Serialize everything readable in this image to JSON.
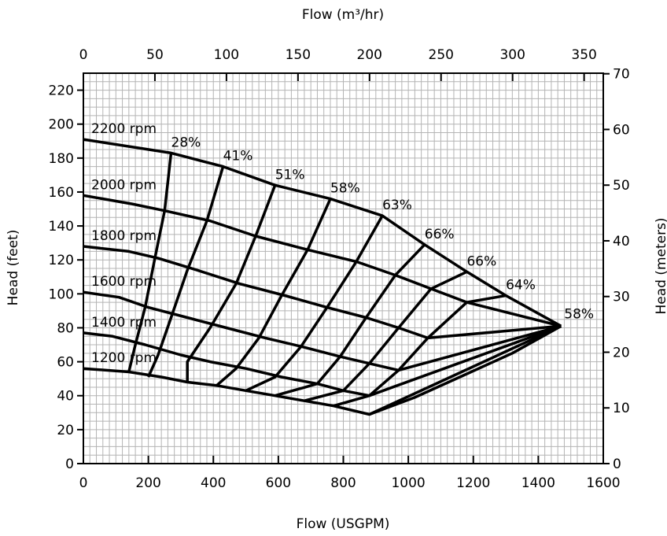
{
  "chart_data": {
    "type": "line",
    "title": "",
    "xlabel": "Flow (USGPM)",
    "x2label": "Flow (m³/hr)",
    "ylabel": "Head (feet)",
    "y2label": "Head (meters)",
    "xlim": [
      0,
      1600
    ],
    "ylim": [
      0,
      230
    ],
    "x2lim": [
      0,
      363.4
    ],
    "y2lim": [
      0,
      70.1
    ],
    "xticks": [
      0,
      200,
      400,
      600,
      800,
      1000,
      1200,
      1400,
      1600
    ],
    "yticks": [
      0,
      20,
      40,
      60,
      80,
      100,
      120,
      140,
      160,
      180,
      200,
      220
    ],
    "x2ticks": [
      0,
      50,
      100,
      150,
      200,
      250,
      300,
      350
    ],
    "y2ticks": [
      0,
      10,
      20,
      30,
      40,
      50,
      60,
      70
    ],
    "grid": true,
    "series": [
      {
        "name": "2200 rpm",
        "x": [
          0,
          270,
          310,
          430,
          590,
          760,
          920,
          1050,
          1180,
          1300,
          1470
        ],
        "y": [
          191,
          183,
          181,
          175,
          164,
          156,
          146,
          129,
          113,
          99,
          81
        ]
      },
      {
        "name": "2000 rpm",
        "x": [
          0,
          150,
          250,
          390,
          530,
          690,
          840,
          960,
          1070,
          1180,
          1470
        ],
        "y": [
          158,
          153,
          149,
          143,
          134,
          126,
          119,
          111,
          103,
          95,
          81
        ]
      },
      {
        "name": "1800 rpm",
        "x": [
          0,
          140,
          230,
          350,
          480,
          620,
          750,
          870,
          970,
          1060,
          1470
        ],
        "y": [
          128,
          125,
          121,
          114,
          106,
          99,
          92,
          86,
          80,
          74,
          81
        ]
      },
      {
        "name": "1600 rpm",
        "x": [
          0,
          110,
          200,
          320,
          440,
          560,
          670,
          790,
          880,
          970,
          1470
        ],
        "y": [
          101,
          98,
          92,
          86,
          80,
          74,
          69,
          63,
          59,
          55,
          81
        ]
      },
      {
        "name": "1400 rpm",
        "x": [
          0,
          90,
          190,
          300,
          390,
          500,
          610,
          720,
          800,
          880,
          1470
        ],
        "y": [
          77,
          75,
          70,
          64,
          60,
          56,
          51,
          47,
          43,
          40,
          81
        ]
      },
      {
        "name": "1200 rpm",
        "x": [
          0,
          140,
          240,
          320,
          410,
          500,
          590,
          680,
          770,
          880,
          1470
        ],
        "y": [
          56,
          54,
          51,
          48,
          46,
          43,
          40,
          37,
          34,
          29,
          81
        ]
      }
    ],
    "efficiency_lines": [
      {
        "label": "28%",
        "x": [
          270,
          250,
          220,
          190,
          160,
          140
        ],
        "y": [
          183,
          149,
          121,
          92,
          70,
          54
        ]
      },
      {
        "label": "41%",
        "x": [
          430,
          380,
          320,
          270,
          230,
          200
        ],
        "y": [
          175,
          143,
          114,
          86,
          64,
          51
        ]
      },
      {
        "label": "51%",
        "x": [
          590,
          530,
          470,
          390,
          320,
          320
        ],
        "y": [
          164,
          134,
          106,
          80,
          60,
          48
        ]
      },
      {
        "label": "58%",
        "x": [
          760,
          690,
          610,
          540,
          470,
          410
        ],
        "y": [
          156,
          126,
          99,
          74,
          56,
          46
        ]
      },
      {
        "label": "63%",
        "x": [
          920,
          840,
          750,
          670,
          590,
          500
        ],
        "y": [
          146,
          119,
          92,
          69,
          51,
          43
        ]
      },
      {
        "label": "66%",
        "x": [
          1050,
          960,
          870,
          790,
          720,
          590
        ],
        "y": [
          129,
          111,
          86,
          63,
          47,
          40
        ]
      },
      {
        "label": "66%",
        "x": [
          1180,
          1070,
          970,
          880,
          800,
          680
        ],
        "y": [
          113,
          103,
          80,
          59,
          43,
          37
        ]
      },
      {
        "label": "64%",
        "x": [
          1300,
          1180,
          1060,
          970,
          880,
          770
        ],
        "y": [
          99,
          95,
          74,
          55,
          40,
          34
        ]
      },
      {
        "label": "58%",
        "x": [
          1470,
          1320,
          1170,
          1020,
          880
        ],
        "y": [
          81,
          65,
          52,
          39,
          29
        ]
      }
    ]
  }
}
